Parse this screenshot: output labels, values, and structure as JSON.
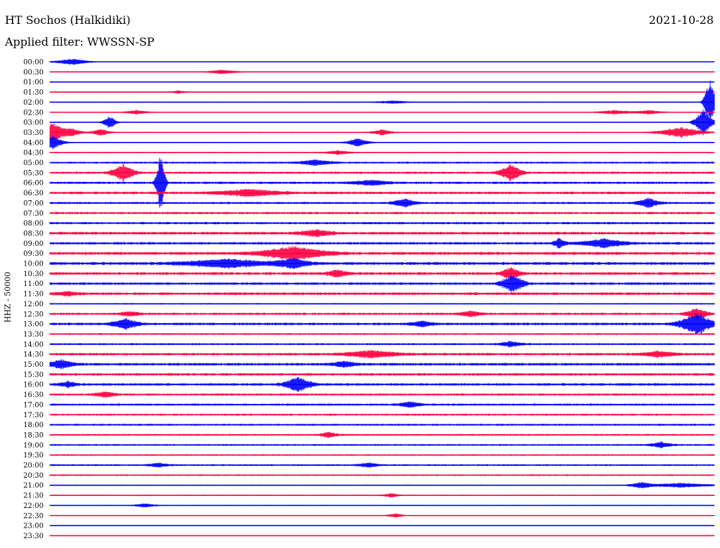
{
  "header": {
    "station": "HT Sochos (Halkidiki)",
    "filter": "Applied filter: WWSSN-SP",
    "date": "2021-10-28"
  },
  "channel_label": "HHZ - 50000",
  "colors": {
    "trace_a": "#0000ff",
    "trace_b": "#ff0040"
  },
  "chart_data": {
    "type": "line",
    "title": "HT Sochos (Halkidiki)",
    "subtitle": "Applied filter: WWSSN-SP",
    "date": "2021-10-28",
    "ylabel": "HHZ - 50000",
    "xlabel": "",
    "grid": false,
    "legend": "none",
    "x_minutes_per_row": 30,
    "categories": [
      "00:00",
      "00:30",
      "01:00",
      "01:30",
      "02:00",
      "02:30",
      "03:00",
      "03:30",
      "04:00",
      "04:30",
      "05:00",
      "05:30",
      "06:00",
      "06:30",
      "07:00",
      "07:30",
      "08:00",
      "08:30",
      "09:00",
      "09:30",
      "10:00",
      "10:30",
      "11:00",
      "11:30",
      "12:00",
      "12:30",
      "13:00",
      "13:30",
      "14:00",
      "14:30",
      "15:00",
      "15:30",
      "16:00",
      "16:30",
      "17:00",
      "17:30",
      "18:00",
      "18:30",
      "19:00",
      "19:30",
      "20:00",
      "20:30",
      "21:00",
      "21:30",
      "22:00",
      "22:30",
      "23:00",
      "23:30"
    ],
    "row_colors": [
      "trace_a",
      "trace_b"
    ],
    "noise_level": [
      0.3,
      0.4,
      0.3,
      0.4,
      0.5,
      0.5,
      0.3,
      0.5,
      0.5,
      0.6,
      1.0,
      1.1,
      1.2,
      1.3,
      1.1,
      1.2,
      1.2,
      1.4,
      1.3,
      1.5,
      1.5,
      1.4,
      1.3,
      1.4,
      0.7,
      1.2,
      1.3,
      0.9,
      1.0,
      1.3,
      1.4,
      1.3,
      1.3,
      1.1,
      1.1,
      1.0,
      1.0,
      0.9,
      0.9,
      0.8,
      0.9,
      0.8,
      0.6,
      0.5,
      0.4,
      0.4,
      0.3,
      0.3
    ],
    "events": [
      {
        "row": 0,
        "minute": 1.0,
        "amp": 5,
        "dur": 1.5
      },
      {
        "row": 1,
        "minute": 7.8,
        "amp": 3,
        "dur": 1.5
      },
      {
        "row": 3,
        "minute": 5.8,
        "amp": 2,
        "dur": 0.8
      },
      {
        "row": 4,
        "minute": 15.5,
        "amp": 2,
        "dur": 1.5
      },
      {
        "row": 4,
        "minute": 29.8,
        "amp": 35,
        "dur": 0.5
      },
      {
        "row": 5,
        "minute": 3.9,
        "amp": 3,
        "dur": 1.0
      },
      {
        "row": 5,
        "minute": 25.5,
        "amp": 3,
        "dur": 1.5
      },
      {
        "row": 5,
        "minute": 27.0,
        "amp": 3,
        "dur": 1.2
      },
      {
        "row": 6,
        "minute": 2.7,
        "amp": 10,
        "dur": 0.6
      },
      {
        "row": 6,
        "minute": 29.5,
        "amp": 20,
        "dur": 0.8
      },
      {
        "row": 7,
        "minute": 0.1,
        "amp": 14,
        "dur": 1.2
      },
      {
        "row": 7,
        "minute": 1.0,
        "amp": 5,
        "dur": 1.0
      },
      {
        "row": 7,
        "minute": 2.3,
        "amp": 5,
        "dur": 0.8
      },
      {
        "row": 7,
        "minute": 15.0,
        "amp": 4,
        "dur": 1.0
      },
      {
        "row": 7,
        "minute": 28.5,
        "amp": 8,
        "dur": 2.0
      },
      {
        "row": 8,
        "minute": 0.1,
        "amp": 10,
        "dur": 1.0
      },
      {
        "row": 8,
        "minute": 13.9,
        "amp": 6,
        "dur": 1.0
      },
      {
        "row": 9,
        "minute": 13.0,
        "amp": 3,
        "dur": 1.2
      },
      {
        "row": 10,
        "minute": 12.0,
        "amp": 4,
        "dur": 1.5
      },
      {
        "row": 11,
        "minute": 3.3,
        "amp": 12,
        "dur": 1.0
      },
      {
        "row": 11,
        "minute": 20.8,
        "amp": 12,
        "dur": 1.0
      },
      {
        "row": 12,
        "minute": 5.0,
        "amp": 45,
        "dur": 0.4
      },
      {
        "row": 12,
        "minute": 14.5,
        "amp": 4,
        "dur": 1.5
      },
      {
        "row": 13,
        "minute": 9.0,
        "amp": 5,
        "dur": 3.0
      },
      {
        "row": 14,
        "minute": 16.0,
        "amp": 6,
        "dur": 1.0
      },
      {
        "row": 14,
        "minute": 27.0,
        "amp": 7,
        "dur": 1.0
      },
      {
        "row": 17,
        "minute": 12.0,
        "amp": 5,
        "dur": 1.5
      },
      {
        "row": 18,
        "minute": 25.0,
        "amp": 6,
        "dur": 2.0
      },
      {
        "row": 18,
        "minute": 23.0,
        "amp": 8,
        "dur": 0.5
      },
      {
        "row": 19,
        "minute": 11.0,
        "amp": 10,
        "dur": 3.0
      },
      {
        "row": 20,
        "minute": 8.0,
        "amp": 6,
        "dur": 4.0
      },
      {
        "row": 20,
        "minute": 11.0,
        "amp": 7,
        "dur": 1.5
      },
      {
        "row": 21,
        "minute": 13.0,
        "amp": 5,
        "dur": 1.0
      },
      {
        "row": 21,
        "minute": 20.8,
        "amp": 9,
        "dur": 0.8
      },
      {
        "row": 22,
        "minute": 20.9,
        "amp": 14,
        "dur": 1.0
      },
      {
        "row": 23,
        "minute": 0.8,
        "amp": 3,
        "dur": 1.0
      },
      {
        "row": 25,
        "minute": 3.6,
        "amp": 3,
        "dur": 1.0
      },
      {
        "row": 25,
        "minute": 19.0,
        "amp": 4,
        "dur": 1.0
      },
      {
        "row": 25,
        "minute": 29.2,
        "amp": 8,
        "dur": 1.0
      },
      {
        "row": 26,
        "minute": 3.4,
        "amp": 8,
        "dur": 1.2
      },
      {
        "row": 26,
        "minute": 16.8,
        "amp": 4,
        "dur": 1.0
      },
      {
        "row": 26,
        "minute": 29.2,
        "amp": 16,
        "dur": 1.5
      },
      {
        "row": 28,
        "minute": 20.8,
        "amp": 4,
        "dur": 1.0
      },
      {
        "row": 29,
        "minute": 14.5,
        "amp": 5,
        "dur": 2.5
      },
      {
        "row": 29,
        "minute": 27.5,
        "amp": 4,
        "dur": 1.5
      },
      {
        "row": 30,
        "minute": 0.5,
        "amp": 6,
        "dur": 1.2
      },
      {
        "row": 30,
        "minute": 13.3,
        "amp": 4,
        "dur": 1.2
      },
      {
        "row": 32,
        "minute": 11.2,
        "amp": 11,
        "dur": 1.2
      },
      {
        "row": 32,
        "minute": 0.8,
        "amp": 4,
        "dur": 0.8
      },
      {
        "row": 33,
        "minute": 2.5,
        "amp": 4,
        "dur": 1.0
      },
      {
        "row": 34,
        "minute": 16.3,
        "amp": 4,
        "dur": 1.0
      },
      {
        "row": 37,
        "minute": 12.6,
        "amp": 4,
        "dur": 0.8
      },
      {
        "row": 38,
        "minute": 27.6,
        "amp": 4,
        "dur": 1.0
      },
      {
        "row": 40,
        "minute": 4.9,
        "amp": 3,
        "dur": 1.0
      },
      {
        "row": 40,
        "minute": 14.4,
        "amp": 3,
        "dur": 1.0
      },
      {
        "row": 42,
        "minute": 26.7,
        "amp": 4,
        "dur": 1.0
      },
      {
        "row": 42,
        "minute": 28.5,
        "amp": 3,
        "dur": 3.0
      },
      {
        "row": 43,
        "minute": 15.4,
        "amp": 3,
        "dur": 0.8
      },
      {
        "row": 44,
        "minute": 4.3,
        "amp": 3,
        "dur": 1.0
      },
      {
        "row": 45,
        "minute": 15.6,
        "amp": 3,
        "dur": 0.8
      }
    ]
  }
}
